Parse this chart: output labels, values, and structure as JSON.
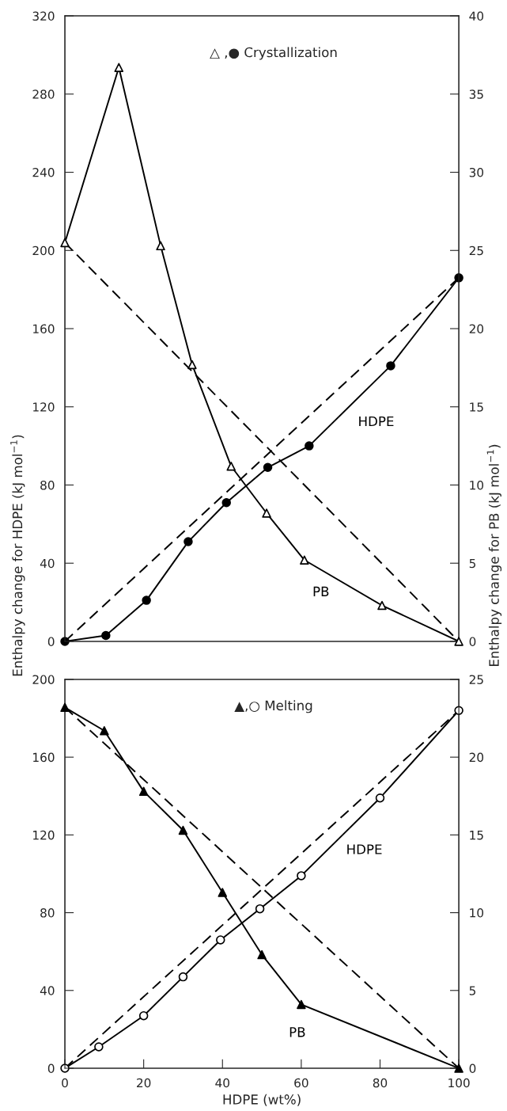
{
  "chart_data": [
    {
      "type": "line",
      "annotations": [
        "△ ,● Crystallization"
      ],
      "ylabel": "Enthalpy change for HDPE (kJ mol$^{−1}$)",
      "y2label": "Enthalpy change for PB (kJ mol$^{−1}$)",
      "xlim": [
        0,
        100
      ],
      "ylim": [
        0,
        320
      ],
      "yticks": [
        0,
        40,
        80,
        120,
        160,
        200,
        240,
        280,
        320
      ],
      "y2lim": [
        0,
        40
      ],
      "y2ticks": [
        0,
        5,
        10,
        15,
        20,
        25,
        30,
        35,
        40
      ],
      "tick_labels": "y",
      "series": [
        {
          "name": "PB",
          "axis": "y2",
          "color": "#000000",
          "colors": [
            "#ffffff",
            "#ffffff",
            "#ffffff",
            "#ffffff",
            "#ffffff",
            "#ffffff",
            "#ffffff",
            "#ffffff",
            "#ffffff"
          ],
          "marker": "triangle",
          "line_style": "solid",
          "x": [
            0,
            13.7,
            24.3,
            32.3,
            42.2,
            51.2,
            60.8,
            80.5,
            100
          ],
          "values": [
            25.5,
            36.7,
            25.3,
            17.7,
            11.2,
            8.2,
            5.2,
            2.3,
            0
          ]
        },
        {
          "name": "HDPE",
          "axis": "y",
          "color": "#000000",
          "marker": "circle",
          "line_style": "solid",
          "x": [
            0,
            10.4,
            20.7,
            31.3,
            41,
            51.5,
            62,
            82.7,
            100
          ],
          "values": [
            0,
            3,
            21,
            51,
            71,
            89,
            100,
            141,
            186
          ]
        },
        {
          "axis": "y2",
          "color": "#000000",
          "marker": "none",
          "line_style": "dashed",
          "x": [
            0,
            100
          ],
          "values": [
            25.5,
            0
          ]
        },
        {
          "axis": "y",
          "color": "#000000",
          "marker": "none",
          "line_style": "dashed",
          "x": [
            0,
            100
          ],
          "values": [
            0,
            186
          ]
        }
      ]
    },
    {
      "type": "line",
      "annotations": [
        "▲,○ Melting"
      ],
      "xlabel": "HDPE (wt%)",
      "xlim": [
        0,
        100
      ],
      "xticks": [
        0,
        20,
        40,
        60,
        80,
        100
      ],
      "ylim": [
        0,
        200
      ],
      "yticks": [
        0,
        40,
        80,
        120,
        160,
        200
      ],
      "y2lim": [
        0,
        25
      ],
      "y2ticks": [
        0,
        5,
        10,
        15,
        20,
        25
      ],
      "series": [
        {
          "name": "PB",
          "axis": "y2",
          "color": "#000000",
          "marker": "triangle",
          "line_style": "solid",
          "x": [
            0,
            10,
            20,
            30,
            40,
            50,
            60,
            100
          ],
          "values": [
            23.2,
            21.7,
            17.8,
            15.3,
            11.3,
            7.3,
            4.1,
            0
          ]
        },
        {
          "name": "HDPE",
          "axis": "y",
          "color": "#000000",
          "colors": [
            "#ffffff",
            "#ffffff",
            "#ffffff",
            "#ffffff",
            "#ffffff",
            "#ffffff",
            "#ffffff",
            "#ffffff",
            "#ffffff"
          ],
          "marker": "circle",
          "line_style": "solid",
          "x": [
            0,
            8.6,
            20,
            30,
            39.5,
            49.5,
            60,
            80,
            100
          ],
          "values": [
            0,
            11,
            27,
            47,
            66,
            82,
            99,
            139,
            184
          ]
        },
        {
          "axis": "y2",
          "color": "#000000",
          "marker": "none",
          "line_style": "dashed",
          "x": [
            0,
            100
          ],
          "values": [
            23.2,
            0
          ]
        },
        {
          "axis": "y",
          "color": "#000000",
          "marker": "none",
          "line_style": "dashed",
          "x": [
            0,
            100
          ],
          "values": [
            0,
            184
          ]
        }
      ]
    }
  ]
}
